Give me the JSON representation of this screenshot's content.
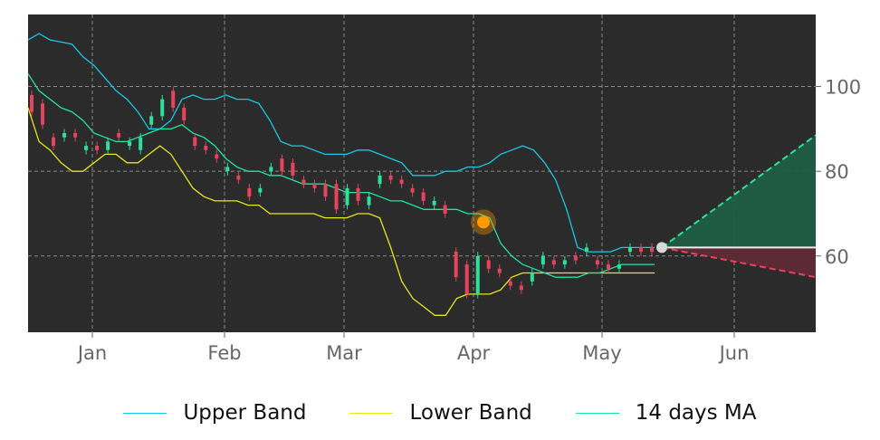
{
  "chart_data": {
    "type": "line",
    "style": {
      "background": "#2b2b2b",
      "grid": true,
      "grid_color": "#8a8a8a",
      "up_color": "#2de19b",
      "down_color": "#e8435e"
    },
    "x_ticks": [
      "Jan",
      "Feb",
      "Mar",
      "Apr",
      "May",
      "Jun"
    ],
    "y_ticks": [
      60,
      80,
      100
    ],
    "ylim": [
      42,
      117
    ],
    "legend_position": "bottom",
    "series": [
      {
        "name": "Upper Band",
        "color": "#18c8e6"
      },
      {
        "name": "Lower Band",
        "color": "#e6e61a"
      },
      {
        "name": "14 days MA",
        "color": "#1ee6a0"
      }
    ],
    "upper_band": [
      111,
      112.5,
      111,
      110.5,
      110,
      107,
      105,
      102,
      99,
      97,
      94,
      90,
      90,
      92,
      97,
      98,
      97,
      97,
      98,
      97,
      97,
      96,
      92,
      87,
      86,
      86,
      85,
      84,
      84,
      84,
      85,
      85,
      84,
      83,
      82,
      79,
      79,
      79,
      80,
      80,
      81,
      81,
      82,
      84,
      85,
      86,
      85,
      82,
      78,
      71,
      62,
      61,
      61,
      61,
      62,
      62,
      62,
      62
    ],
    "ma_14": [
      103,
      99,
      97,
      95,
      94,
      92,
      89,
      88,
      87,
      87,
      88,
      89,
      90,
      90,
      91,
      89,
      88,
      86,
      83,
      81,
      80,
      80,
      79,
      79,
      78,
      77,
      77,
      77,
      76,
      75,
      75,
      75,
      74,
      73,
      73,
      72,
      71,
      71,
      71,
      71,
      70,
      70,
      69,
      63,
      60,
      58,
      57,
      56,
      55,
      55,
      55,
      56,
      56,
      57,
      58,
      58,
      58,
      58
    ],
    "lower_band": [
      95,
      87,
      85,
      82,
      80,
      80,
      82,
      84,
      84,
      82,
      82,
      84,
      86,
      84,
      80,
      76,
      74,
      73,
      73,
      73,
      72,
      72,
      70,
      70,
      70,
      70,
      70,
      69,
      69,
      69,
      70,
      70,
      69,
      62,
      54,
      50,
      48,
      46,
      46,
      50,
      51,
      51,
      51,
      52,
      55,
      56,
      56,
      56,
      56,
      56,
      56,
      56,
      56,
      56,
      56,
      56,
      56,
      56
    ],
    "candles": [
      {
        "o": 98,
        "c": 94
      },
      {
        "o": 96,
        "c": 91
      },
      {
        "o": 88,
        "c": 86
      },
      {
        "o": 88,
        "c": 89
      },
      {
        "o": 89,
        "c": 88
      },
      {
        "o": 85,
        "c": 86
      },
      {
        "o": 86,
        "c": 85
      },
      {
        "o": 85,
        "c": 87
      },
      {
        "o": 89,
        "c": 88
      },
      {
        "o": 86,
        "c": 87
      },
      {
        "o": 85,
        "c": 88
      },
      {
        "o": 91,
        "c": 93
      },
      {
        "o": 93,
        "c": 97
      },
      {
        "o": 99,
        "c": 95
      },
      {
        "o": 95,
        "c": 92
      },
      {
        "o": 88,
        "c": 86
      },
      {
        "o": 86,
        "c": 85
      },
      {
        "o": 84,
        "c": 83
      },
      {
        "o": 80,
        "c": 81
      },
      {
        "o": 79,
        "c": 78
      },
      {
        "o": 76,
        "c": 74
      },
      {
        "o": 75,
        "c": 76
      },
      {
        "o": 80,
        "c": 81
      },
      {
        "o": 83,
        "c": 80
      },
      {
        "o": 82,
        "c": 79
      },
      {
        "o": 78,
        "c": 77
      },
      {
        "o": 77,
        "c": 76
      },
      {
        "o": 77,
        "c": 74
      },
      {
        "o": 77,
        "c": 71
      },
      {
        "o": 72,
        "c": 76
      },
      {
        "o": 76,
        "c": 73
      },
      {
        "o": 72,
        "c": 74
      },
      {
        "o": 77,
        "c": 79
      },
      {
        "o": 79,
        "c": 78
      },
      {
        "o": 78,
        "c": 77
      },
      {
        "o": 76,
        "c": 75
      },
      {
        "o": 75,
        "c": 73
      },
      {
        "o": 72,
        "c": 73
      },
      {
        "o": 72,
        "c": 70
      },
      {
        "o": 61,
        "c": 55
      },
      {
        "o": 58,
        "c": 51
      },
      {
        "o": 51,
        "c": 60
      },
      {
        "o": 59,
        "c": 57
      },
      {
        "o": 57,
        "c": 56
      },
      {
        "o": 54,
        "c": 53
      },
      {
        "o": 53,
        "c": 52
      },
      {
        "o": 54,
        "c": 56
      },
      {
        "o": 58,
        "c": 60
      },
      {
        "o": 59,
        "c": 58
      },
      {
        "o": 58,
        "c": 59
      },
      {
        "o": 60,
        "c": 59
      },
      {
        "o": 61,
        "c": 62
      },
      {
        "o": 59,
        "c": 58
      },
      {
        "o": 58,
        "c": 57
      },
      {
        "o": 57,
        "c": 58
      },
      {
        "o": 61,
        "c": 62
      },
      {
        "o": 62,
        "c": 61
      },
      {
        "o": 62,
        "c": 61
      }
    ],
    "signal_point": {
      "x": "Apr",
      "y": 68
    },
    "last_price": 62,
    "forecast_upper_end": 88.5,
    "forecast_lower_end": 55
  }
}
